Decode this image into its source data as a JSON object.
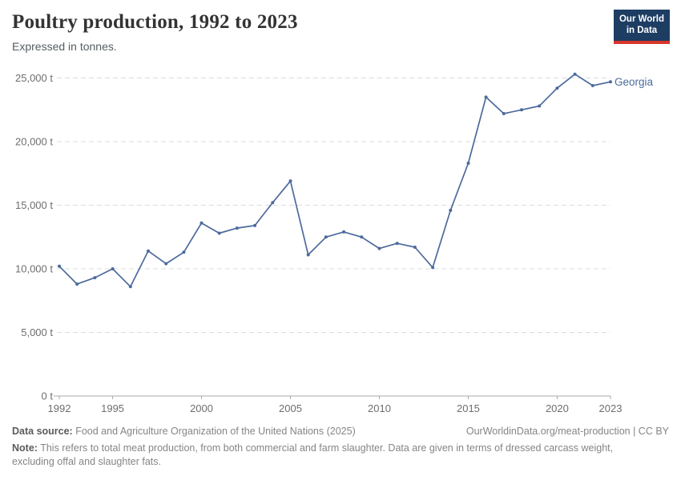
{
  "header": {
    "title": "Poultry production, 1992 to 2023",
    "subtitle": "Expressed in tonnes.",
    "logo": {
      "line1": "Our World",
      "line2": "in Data",
      "bg_color": "#1d3d63",
      "stripe_color": "#d7352b"
    }
  },
  "chart_data": {
    "type": "line",
    "title": "Poultry production, 1992 to 2023",
    "xlabel": "",
    "ylabel": "",
    "unit_suffix": " t",
    "ylim": [
      0,
      25000
    ],
    "yticks": [
      0,
      5000,
      10000,
      15000,
      20000,
      25000
    ],
    "xticks": [
      1992,
      1995,
      2000,
      2005,
      2010,
      2015,
      2020,
      2023
    ],
    "grid": "horizontal-dashed",
    "legend_position": "end-of-line",
    "x": [
      1992,
      1993,
      1994,
      1995,
      1996,
      1997,
      1998,
      1999,
      2000,
      2001,
      2002,
      2003,
      2004,
      2005,
      2006,
      2007,
      2008,
      2009,
      2010,
      2011,
      2012,
      2013,
      2014,
      2015,
      2016,
      2017,
      2018,
      2019,
      2020,
      2021,
      2022,
      2023
    ],
    "series": [
      {
        "name": "Georgia",
        "color": "#4c6a9c",
        "values": [
          10200,
          8800,
          9300,
          10000,
          8600,
          11400,
          10400,
          11300,
          13600,
          12800,
          13200,
          13400,
          15200,
          16900,
          11100,
          12500,
          12900,
          12500,
          11600,
          12000,
          11700,
          10100,
          14600,
          18300,
          23500,
          22200,
          22500,
          22800,
          24200,
          25300,
          24400,
          24700
        ]
      }
    ]
  },
  "footer": {
    "source_label": "Data source:",
    "source_text": "Food and Agriculture Organization of the United Nations (2025)",
    "link_text": "OurWorldinData.org/meat-production | CC BY",
    "note_label": "Note:",
    "note_text": "This refers to total meat production, from both commercial and farm slaughter. Data are given in terms of dressed carcass weight, excluding offal and slaughter fats."
  }
}
